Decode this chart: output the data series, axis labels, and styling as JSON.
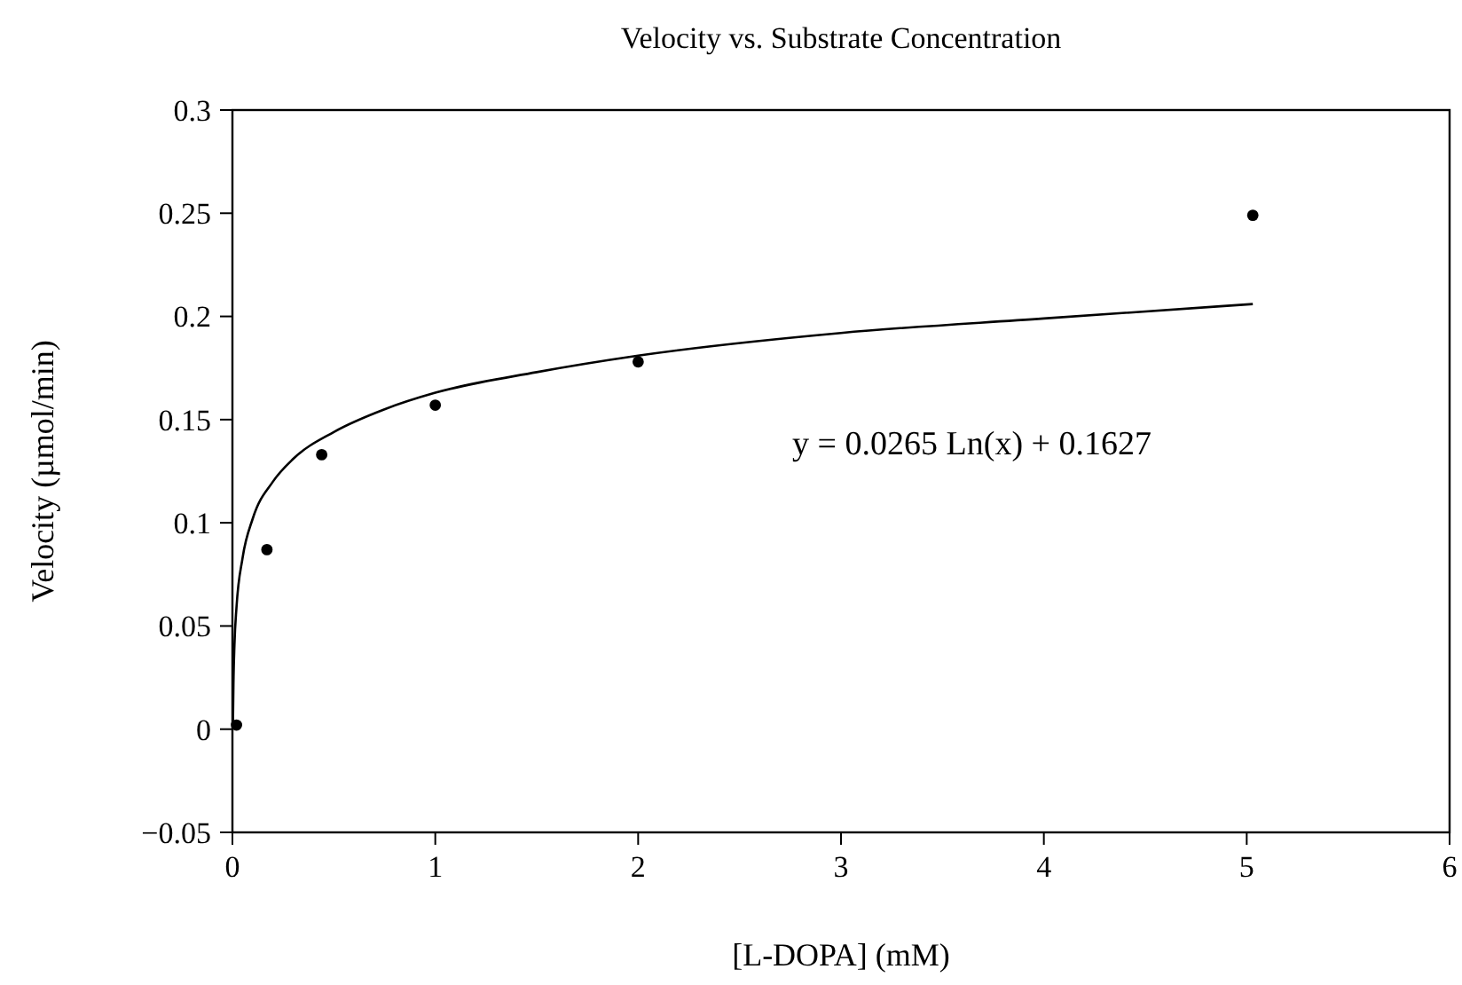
{
  "chart_data": {
    "type": "scatter",
    "title": "Velocity vs. Substrate Concentration",
    "xlabel": "[L-DOPA] (mM)",
    "ylabel": "Velocity (µmol/min)",
    "xlim": [
      0,
      6
    ],
    "xticks": [
      0,
      1,
      2,
      3,
      4,
      5,
      6
    ],
    "ylim": [
      -0.05,
      0.3
    ],
    "yticks": [
      {
        "value": -0.05,
        "label": "−0.05"
      },
      0,
      0.05,
      0.1,
      0.15,
      0.2,
      0.25,
      0.3
    ],
    "grid": false,
    "series": [
      {
        "marker": "circle",
        "color": "#000000",
        "x": [
          0.02,
          0.17,
          0.44,
          1.0,
          2.0,
          5.03
        ],
        "values": [
          0.002,
          0.087,
          0.133,
          0.157,
          0.178,
          0.249
        ]
      },
      {
        "type": "line",
        "marker": "none",
        "line_style": "solid",
        "color": "#000000",
        "x": [
          0.0022,
          0.005,
          0.01,
          0.02,
          0.05,
          0.1,
          0.2,
          0.3,
          0.5,
          0.75,
          1,
          1.5,
          2,
          3,
          4,
          5.03
        ],
        "values": [
          0.0,
          0.022,
          0.041,
          0.059,
          0.083,
          0.102,
          0.12,
          0.131,
          0.144,
          0.155,
          0.163,
          0.173,
          0.181,
          0.192,
          0.199,
          0.206
        ]
      }
    ],
    "annotations": [
      "y = 0.0265 Ln(x) + 0.1627"
    ]
  }
}
